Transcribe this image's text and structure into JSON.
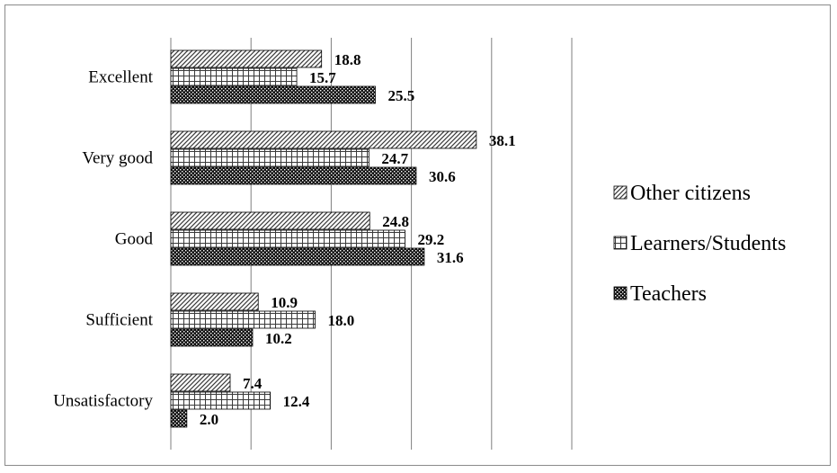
{
  "chart_data": {
    "type": "bar",
    "orientation": "horizontal",
    "categories": [
      "Excellent",
      "Very good",
      "Good",
      "Sufficient",
      "Unsatisfactory"
    ],
    "series": [
      {
        "name": "Other citizens",
        "pattern": "diagonal-hatch",
        "values": [
          18.8,
          38.1,
          24.8,
          10.9,
          7.4
        ]
      },
      {
        "name": "Learners/Students",
        "pattern": "grid",
        "values": [
          15.7,
          24.7,
          29.2,
          18.0,
          12.4
        ]
      },
      {
        "name": "Teachers",
        "pattern": "dense-check",
        "values": [
          25.5,
          30.6,
          31.6,
          10.2,
          2.0
        ]
      }
    ],
    "value_labels": [
      [
        "18.8",
        "38.1",
        "24.8",
        "10.9",
        "7.4"
      ],
      [
        "15.7",
        "24.7",
        "29.2",
        "18.0",
        "12.4"
      ],
      [
        "25.5",
        "30.6",
        "31.6",
        "10.2",
        "2.0"
      ]
    ],
    "title": "",
    "xlabel": "",
    "ylabel": "",
    "xlim": [
      0,
      50
    ],
    "grid": true,
    "legend_position": "right",
    "colors": {
      "bar_stroke": "#000000",
      "gridline": "#7f7f7f",
      "frame": "#8a8a8a"
    }
  }
}
